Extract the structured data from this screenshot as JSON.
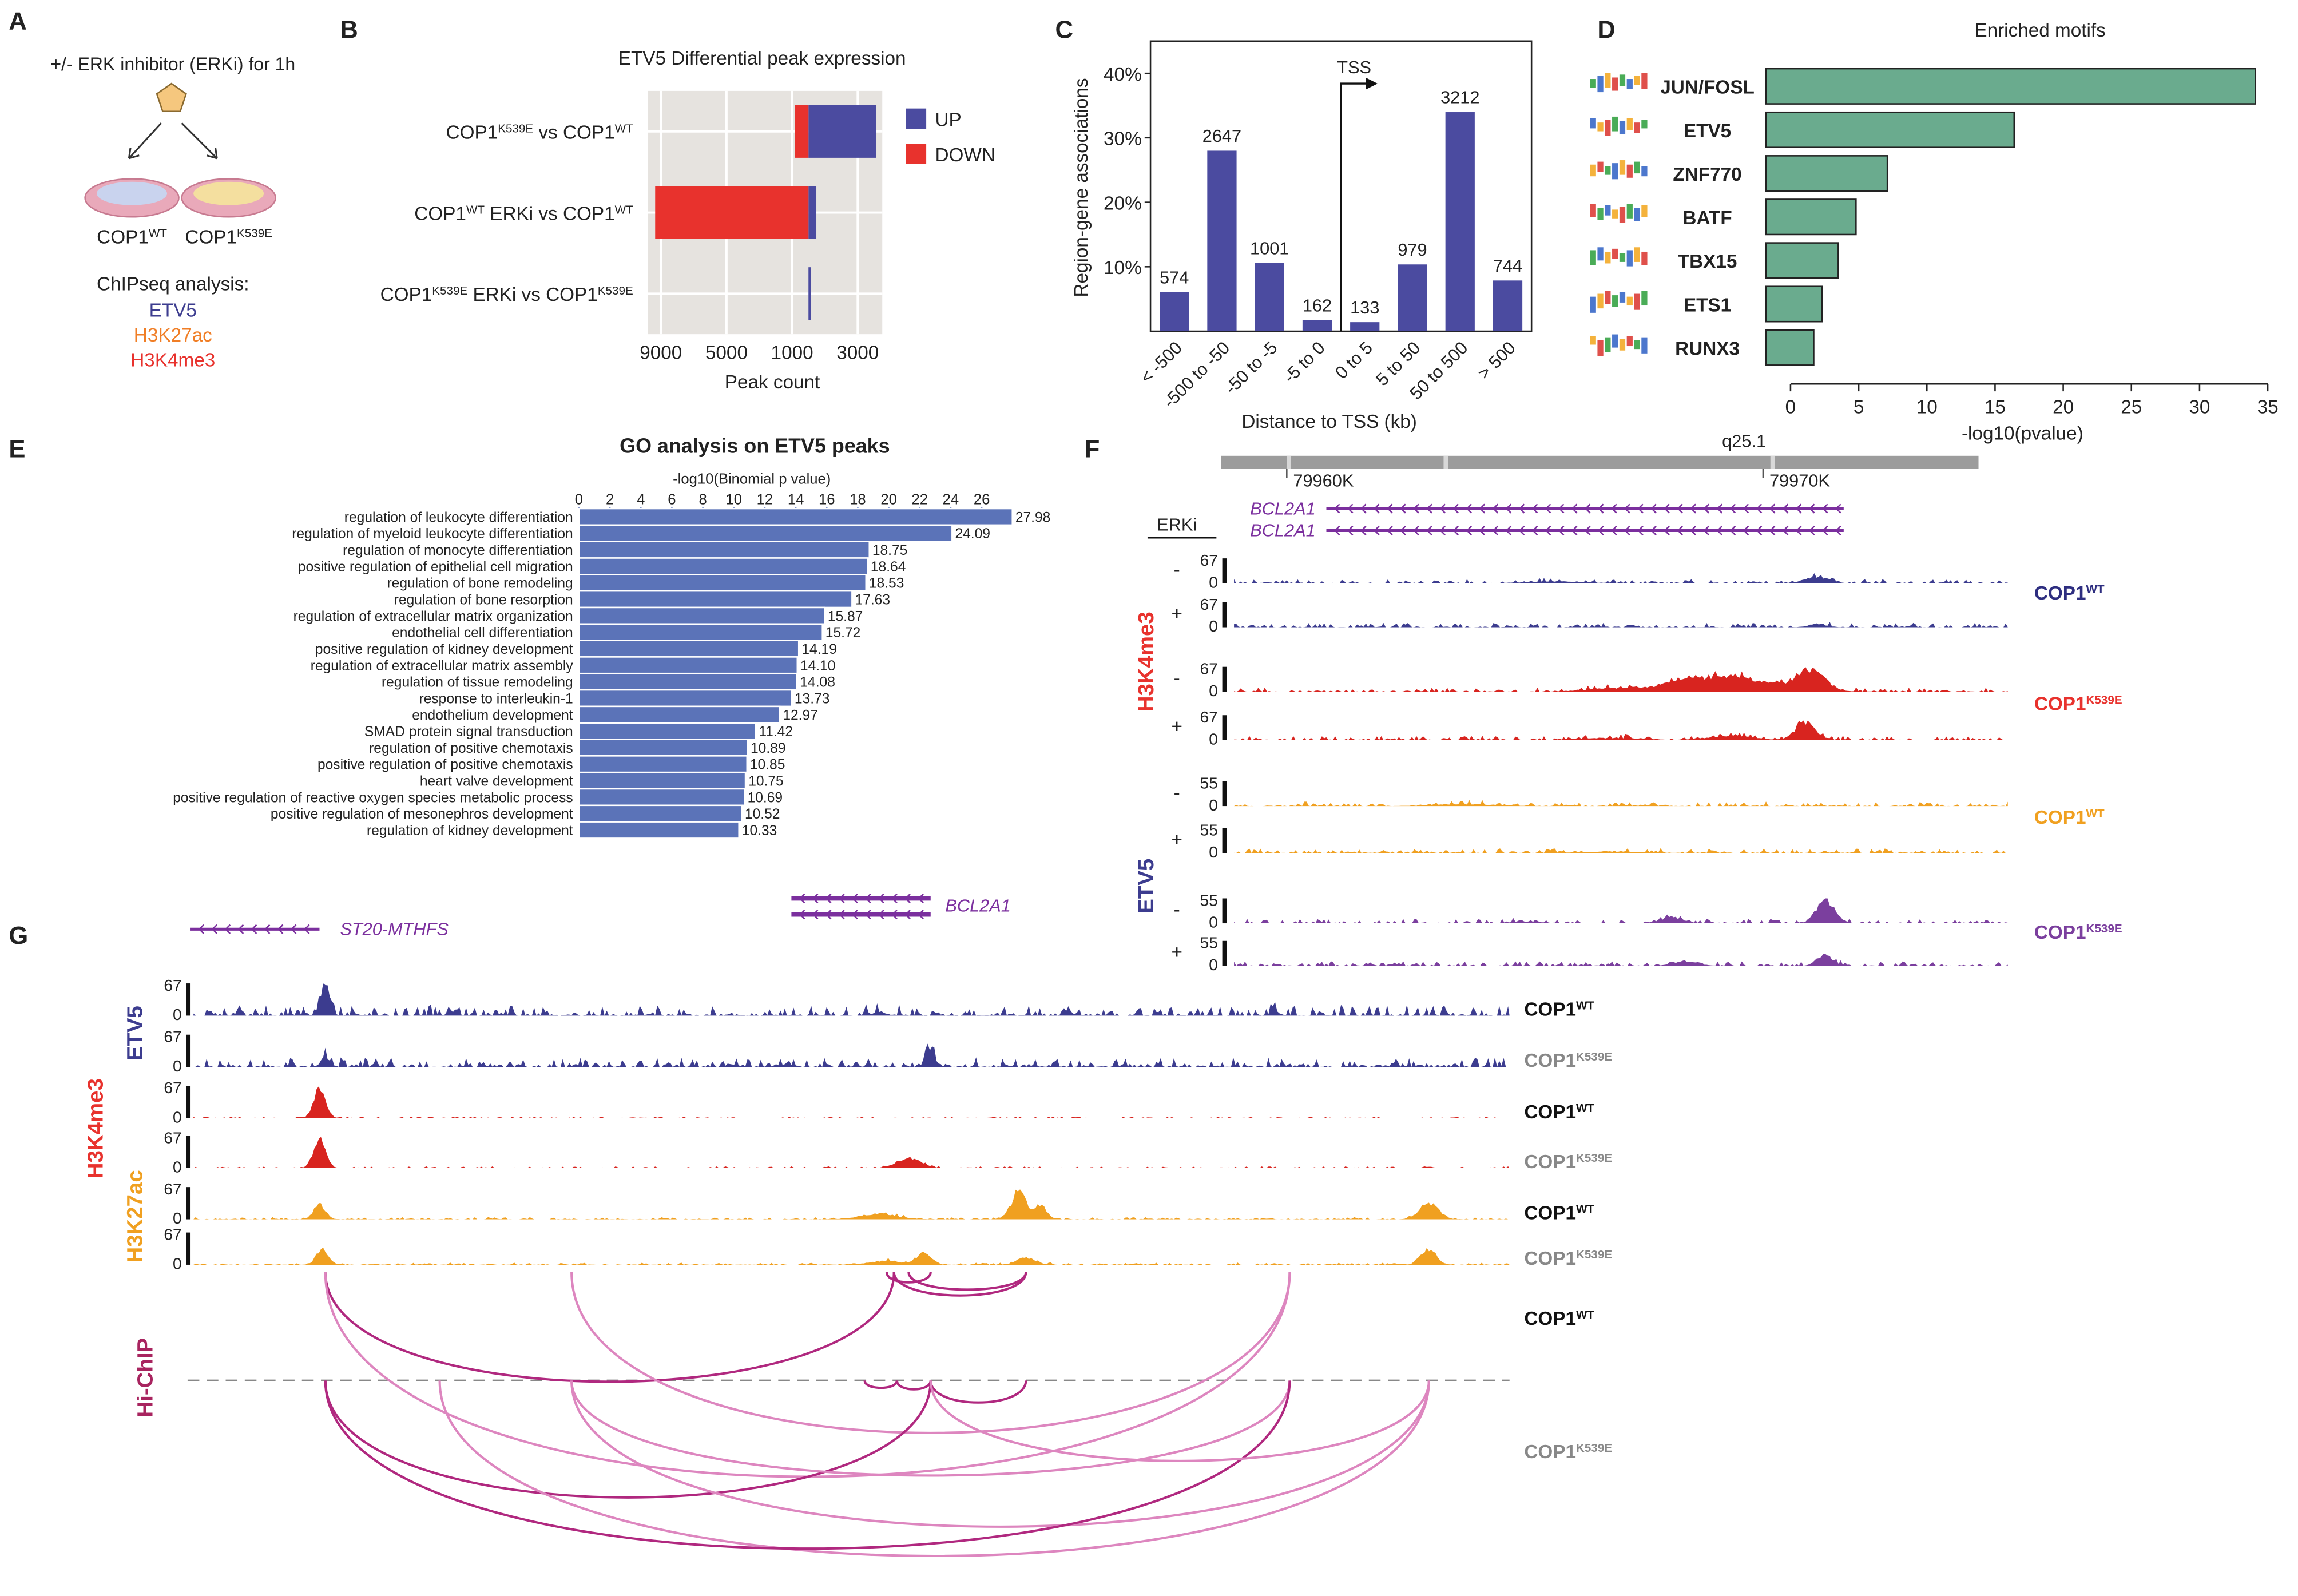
{
  "panel_a": {
    "letter": "A",
    "treatment": "+/- ERK inhibitor (ERKi) for 1h",
    "dishes": [
      [
        "COP1",
        "WT"
      ],
      [
        "COP1",
        "K539E"
      ]
    ],
    "analysis": "ChIPseq analysis:",
    "marks": [
      {
        "name": "ETV5",
        "color": "#3c3c8f"
      },
      {
        "name": "H3K27ac",
        "color": "#f07e26"
      },
      {
        "name": "H3K4me3",
        "color": "#e8322d"
      }
    ]
  },
  "chart_data": [
    {
      "letter": "B",
      "type": "diverging_bar",
      "title": "ETV5 Differential peak expression",
      "categories": [
        [
          "COP1",
          "K539E",
          " vs COP1",
          "WT"
        ],
        [
          "COP1",
          "WT",
          " ERKi vs COP1",
          "WT"
        ],
        [
          "COP1",
          "K539E",
          " ERKi vs COP1",
          "K539E"
        ]
      ],
      "series": [
        {
          "name": "UP",
          "color": "#4b4ba0",
          "values": [
            4130,
            480,
            150
          ]
        },
        {
          "name": "DOWN",
          "color": "#e8322d",
          "values": [
            -830,
            -9350,
            0
          ]
        }
      ],
      "xlabel": "Peak count",
      "xlim": [
        -9800,
        4500
      ],
      "xticks": [
        {
          "value": -9000,
          "label": "9000"
        },
        {
          "value": -5000,
          "label": "5000"
        },
        {
          "value": -1000,
          "label": "1000"
        },
        3000
      ],
      "grid": true,
      "legend": "right"
    },
    {
      "letter": "C",
      "type": "bar",
      "categories": [
        "< -500",
        "-500 to -50",
        "-50 to -5",
        "-5 to 0",
        "0 to 5",
        "5 to 50",
        "50 to 500",
        "> 500"
      ],
      "values": [
        6.07,
        28.0,
        10.59,
        1.71,
        1.41,
        10.36,
        33.98,
        7.87
      ],
      "counts": [
        574,
        2647,
        1001,
        162,
        133,
        979,
        3212,
        744
      ],
      "color": "#4b4ba0",
      "ylabel": "Region-gene associations",
      "xlabel": "Distance to TSS (kb)",
      "ylim": [
        0,
        45
      ],
      "yticks": [
        {
          "value": 10,
          "label": "10%"
        },
        {
          "value": 20,
          "label": "20%"
        },
        {
          "value": 30,
          "label": "30%"
        },
        {
          "value": 40,
          "label": "40%"
        }
      ],
      "annotation": "TSS"
    },
    {
      "letter": "D",
      "type": "barh",
      "title": "Enriched motifs",
      "categories": [
        "JUN/FOSL",
        "ETV5",
        "ZNF770",
        "BATF",
        "TBX15",
        "ETS1",
        "RUNX3"
      ],
      "values": [
        34.1,
        16.4,
        7.1,
        4.8,
        3.5,
        2.3,
        1.7
      ],
      "color": "#6aab8e",
      "xlabel": "-log10(pvalue)",
      "xlim": [
        -1.8,
        35.5
      ],
      "xticks": [
        0,
        5,
        10,
        15,
        20,
        25,
        30,
        35
      ]
    },
    {
      "letter": "E",
      "type": "barh_labeled",
      "title": "GO analysis on ETV5 peaks",
      "xlabel": "-log10(Binomial p value)",
      "categories": [
        "regulation of leukocyte differentiation",
        "regulation of myeloid leukocyte differentiation",
        "regulation of monocyte differentiation",
        "positive regulation of epithelial cell migration",
        "regulation of bone remodeling",
        "regulation of bone resorption",
        "regulation of extracellular matrix organization",
        "endothelial cell differentiation",
        "positive regulation of kidney development",
        "regulation of extracellular matrix assembly",
        "regulation of tissue remodeling",
        "response to interleukin-1",
        "endothelium development",
        "SMAD protein signal transduction",
        "regulation of positive chemotaxis",
        "positive regulation of positive chemotaxis",
        "heart valve development",
        "positive regulation of reactive oxygen species metabolic process",
        "positive regulation of mesonephros development",
        "regulation of kidney development"
      ],
      "values": [
        27.98,
        24.09,
        18.75,
        18.64,
        18.53,
        17.63,
        15.87,
        15.72,
        14.19,
        14.1,
        14.08,
        13.73,
        12.97,
        11.42,
        10.89,
        10.85,
        10.75,
        10.69,
        10.52,
        10.33
      ],
      "value_labels": [
        "27.98",
        "24.09",
        "18.75",
        "18.64",
        "18.53",
        "17.63",
        "15.87",
        "15.72",
        "14.19",
        "14.10",
        "14.08",
        "13.73",
        "12.97",
        "11.42",
        "10.89",
        "10.85",
        "10.75",
        "10.69",
        "10.52",
        "10.33"
      ],
      "color": "#5b73b8",
      "xlim": [
        0,
        28
      ],
      "xticks": [
        0,
        2,
        4,
        6,
        8,
        10,
        12,
        14,
        16,
        18,
        20,
        22,
        24,
        26
      ]
    }
  ],
  "panel_f": {
    "letter": "F",
    "band": "q25.1",
    "coords": [
      "79960K",
      "79970K"
    ],
    "genes": [
      "BCL2A1",
      "BCL2A1"
    ],
    "condition": "ERKi",
    "groups": [
      {
        "name": "H3K4me3",
        "color": "#e8322d",
        "tracks": [
          {
            "treatment": "-",
            "scale": [
              67,
              0
            ],
            "color": "#3c3c8f"
          },
          {
            "treatment": "+",
            "scale": [
              67,
              0
            ],
            "color": "#3c3c8f"
          },
          {
            "treatment": "-",
            "scale": [
              67,
              0
            ],
            "color": "#d8241f"
          },
          {
            "treatment": "+",
            "scale": [
              67,
              0
            ],
            "color": "#d8241f"
          }
        ],
        "samples": [
          {
            "label": [
              "COP1",
              "WT"
            ],
            "color": "#2e2e80"
          },
          {
            "label": [
              "COP1",
              "K539E"
            ],
            "color": "#e8322d"
          }
        ]
      },
      {
        "name": "ETV5",
        "color": "#3c3c8f",
        "tracks": [
          {
            "treatment": "-",
            "scale": [
              55,
              0
            ],
            "color": "#f0a020"
          },
          {
            "treatment": "+",
            "scale": [
              55,
              0
            ],
            "color": "#f0a020"
          },
          {
            "treatment": "-",
            "scale": [
              55,
              0
            ],
            "color": "#7b3f9e"
          },
          {
            "treatment": "+",
            "scale": [
              55,
              0
            ],
            "color": "#7b3f9e"
          }
        ],
        "samples": [
          {
            "label": [
              "COP1",
              "WT"
            ],
            "color": "#f0a020"
          },
          {
            "label": [
              "COP1",
              "K539E"
            ],
            "color": "#7b3f9e"
          }
        ]
      }
    ]
  },
  "panel_g": {
    "letter": "G",
    "genes": [
      "ST20-MTHFS",
      "BCL2A1"
    ],
    "mark_labels": [
      {
        "name": "ETV5",
        "color": "#3c3c8f"
      },
      {
        "name": "H3K4me3",
        "color": "#e8322d"
      },
      {
        "name": "H3K27ac",
        "color": "#f0a020"
      }
    ],
    "tracks": [
      {
        "sample": [
          "COP1",
          "WT"
        ],
        "scale": [
          67,
          0
        ],
        "color": "#3c3c8f",
        "label_color": "#111"
      },
      {
        "sample": [
          "COP1",
          "K539E"
        ],
        "scale": [
          67,
          0
        ],
        "color": "#3c3c8f",
        "label_color": "#888"
      },
      {
        "sample": [
          "COP1",
          "WT"
        ],
        "scale": [
          67,
          0
        ],
        "color": "#d8241f",
        "label_color": "#111"
      },
      {
        "sample": [
          "COP1",
          "K539E"
        ],
        "scale": [
          67,
          0
        ],
        "color": "#d8241f",
        "label_color": "#888"
      },
      {
        "sample": [
          "COP1",
          "WT"
        ],
        "scale": [
          67,
          0
        ],
        "color": "#f0a020",
        "label_color": "#111"
      },
      {
        "sample": [
          "COP1",
          "K539E"
        ],
        "scale": [
          67,
          0
        ],
        "color": "#f0a020",
        "label_color": "#888"
      }
    ],
    "hichip": {
      "name": "Hi-ChIP",
      "color": "#a8245f",
      "samples": [
        {
          "label": [
            "COP1",
            "WT"
          ],
          "color": "#111"
        },
        {
          "label": [
            "COP1",
            "K539E"
          ],
          "color": "#888"
        }
      ]
    }
  }
}
